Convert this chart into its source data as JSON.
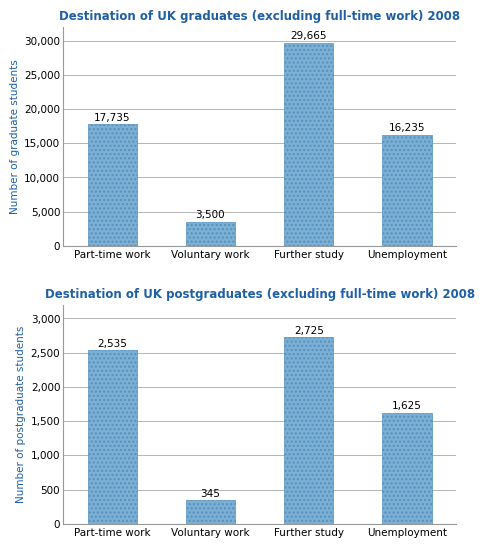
{
  "grad_title": "Destination of UK graduates (excluding full-time work) 2008",
  "postgrad_title": "Destination of UK postgraduates (excluding full-time work) 2008",
  "categories": [
    "Part-time work",
    "Voluntary work",
    "Further study",
    "Unemployment"
  ],
  "grad_values": [
    17735,
    3500,
    29665,
    16235
  ],
  "postgrad_values": [
    2535,
    345,
    2725,
    1625
  ],
  "grad_labels": [
    "17,735",
    "3,500",
    "29,665",
    "16,235"
  ],
  "postgrad_labels": [
    "2,535",
    "345",
    "2,725",
    "1,625"
  ],
  "bar_color": "#7BAFD4",
  "grad_ylabel": "Number of graduate students",
  "postgrad_ylabel": "Number of postgraduate students",
  "grad_ylim": [
    0,
    32000
  ],
  "postgrad_ylim": [
    0,
    3200
  ],
  "grad_yticks": [
    0,
    5000,
    10000,
    15000,
    20000,
    25000,
    30000
  ],
  "postgrad_yticks": [
    0,
    500,
    1000,
    1500,
    2000,
    2500,
    3000
  ],
  "title_color": "#1F5FA6",
  "ylabel_color": "#1F5FA6",
  "title_fontsize": 8.5,
  "label_fontsize": 7.5,
  "ylabel_fontsize": 7.5,
  "tick_fontsize": 7.5,
  "background_color": "#FFFFFF"
}
